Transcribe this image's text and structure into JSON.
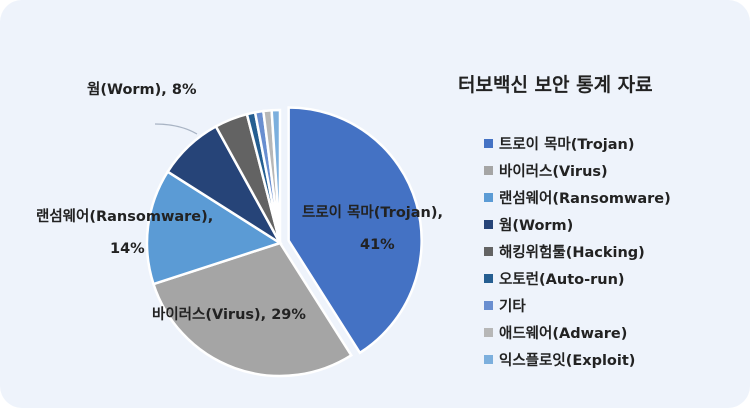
{
  "chart_data": {
    "type": "pie",
    "title": "터보백신 보안 통계 자료",
    "legend_position": "right",
    "series": [
      {
        "name": "트로이 목마(Trojan)",
        "value": 41,
        "color": "#4472c4"
      },
      {
        "name": "바이러스(Virus)",
        "value": 29,
        "color": "#a5a5a5"
      },
      {
        "name": "랜섬웨어(Ransomware)",
        "value": 14,
        "color": "#5b9bd5"
      },
      {
        "name": "웜(Worm)",
        "value": 8,
        "color": "#264478"
      },
      {
        "name": "해킹위험툴(Hacking)",
        "value": 4,
        "color": "#636363"
      },
      {
        "name": "오토런(Auto-run)",
        "value": 1,
        "color": "#255e91"
      },
      {
        "name": "기타",
        "value": 1,
        "color": "#698ed0"
      },
      {
        "name": "애드웨어(Adware)",
        "value": 1,
        "color": "#b7b7b7"
      },
      {
        "name": "익스플로잇(Exploit)",
        "value": 1,
        "color": "#7cafdd"
      }
    ],
    "data_labels": {
      "trojan_line1": "트로이 목마(Trojan),",
      "trojan_line2": "41%",
      "virus": "바이러스(Virus), 29%",
      "ransom_line1": "랜섬웨어(Ransomware),",
      "ransom_line2": "14%",
      "worm": "웜(Worm), 8%"
    }
  }
}
